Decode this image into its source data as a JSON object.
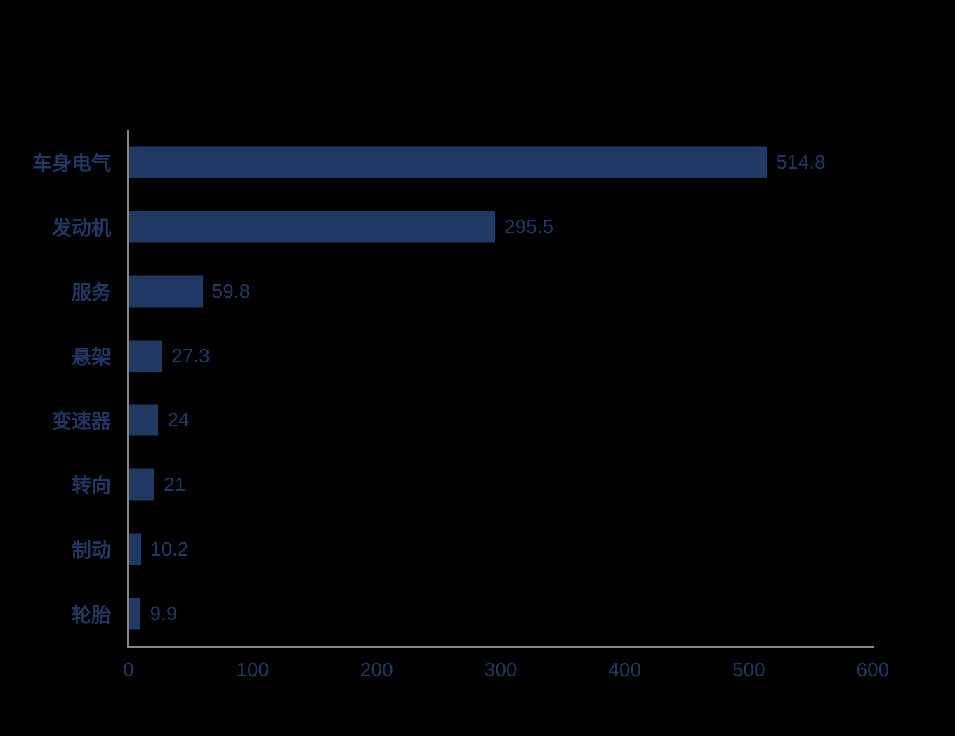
{
  "chart_data": {
    "type": "bar",
    "orientation": "horizontal",
    "title": "",
    "xlabel": "",
    "ylabel": "",
    "categories": [
      "车身电气",
      "发动机",
      "服务",
      "悬架",
      "变速器",
      "转向",
      "制动",
      "轮胎"
    ],
    "values": [
      514.8,
      295.5,
      59.8,
      27.3,
      24,
      21,
      10.2,
      9.9
    ],
    "value_labels": [
      "514.8",
      "295.5",
      "59.8",
      "27.3",
      "24",
      "21",
      "10.2",
      "9.9"
    ],
    "xlim": [
      0,
      600
    ],
    "x_ticks": [
      0,
      100,
      200,
      300,
      400,
      500,
      600
    ],
    "grid": false,
    "legend_position": "none",
    "data_labels_shown": true,
    "colors": {
      "bar": "#1F3864",
      "category_text": "#1F3864",
      "value_text": "#1F3864",
      "tick_text": "#1F3864",
      "axis_line": "#878787",
      "background": "#000000"
    }
  }
}
